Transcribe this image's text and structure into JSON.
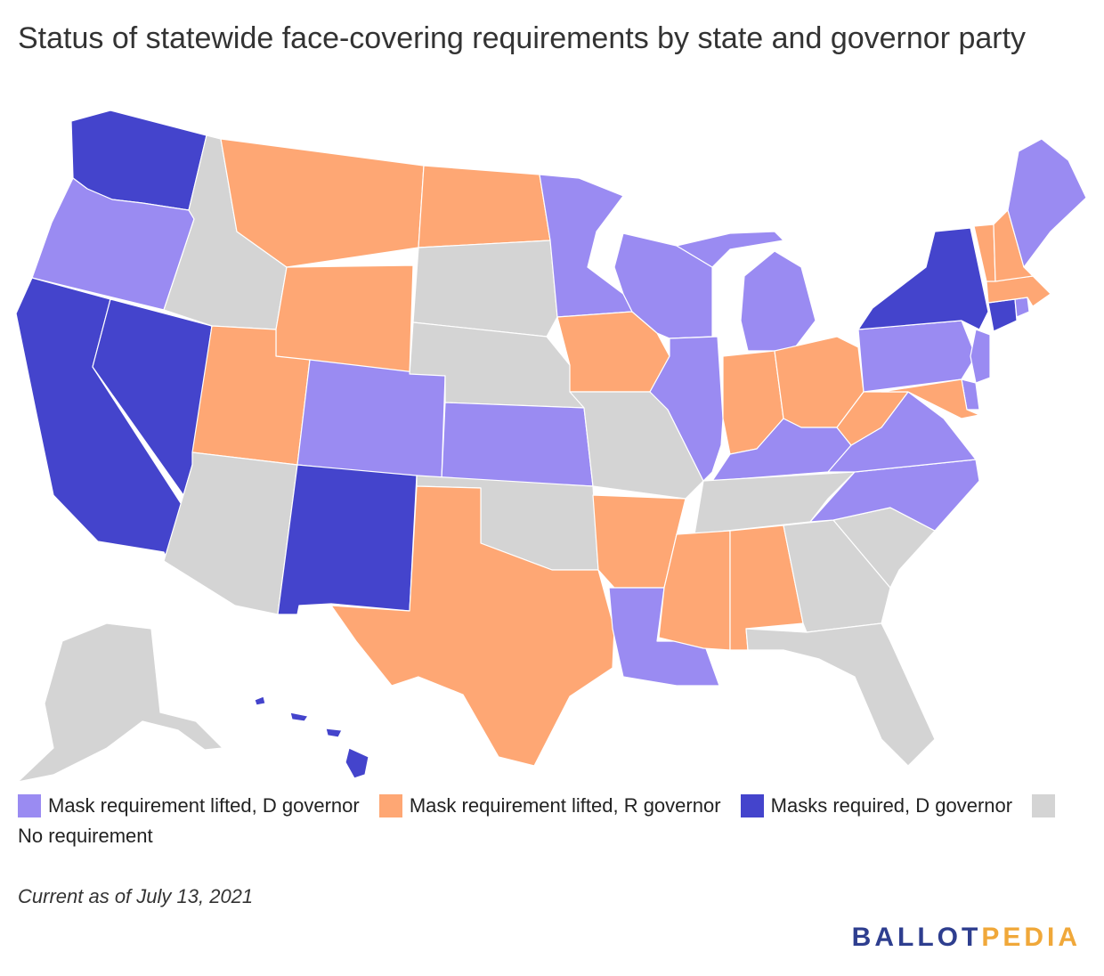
{
  "title": "Status of statewide face-covering requirements by state and governor party",
  "legend": [
    {
      "key": "lifted_d",
      "label": "Mask requirement lifted, D governor",
      "color": "#9a8bf2"
    },
    {
      "key": "lifted_r",
      "label": "Mask requirement lifted, R governor",
      "color": "#fea774"
    },
    {
      "key": "required_d",
      "label": "Masks required, D governor",
      "color": "#4444cc"
    },
    {
      "key": "none",
      "label": "No requirement",
      "color": "#d4d4d4"
    }
  ],
  "states": [
    {
      "name": "Washington",
      "status": "required_d"
    },
    {
      "name": "Oregon",
      "status": "lifted_d"
    },
    {
      "name": "California",
      "status": "required_d"
    },
    {
      "name": "Nevada",
      "status": "required_d"
    },
    {
      "name": "Idaho",
      "status": "none"
    },
    {
      "name": "Montana",
      "status": "lifted_r"
    },
    {
      "name": "Wyoming",
      "status": "lifted_r"
    },
    {
      "name": "Utah",
      "status": "lifted_r"
    },
    {
      "name": "Arizona",
      "status": "none"
    },
    {
      "name": "Colorado",
      "status": "lifted_d"
    },
    {
      "name": "New Mexico",
      "status": "required_d"
    },
    {
      "name": "North Dakota",
      "status": "lifted_r"
    },
    {
      "name": "South Dakota",
      "status": "none"
    },
    {
      "name": "Nebraska",
      "status": "none"
    },
    {
      "name": "Kansas",
      "status": "lifted_d"
    },
    {
      "name": "Oklahoma",
      "status": "none"
    },
    {
      "name": "Texas",
      "status": "lifted_r"
    },
    {
      "name": "Minnesota",
      "status": "lifted_d"
    },
    {
      "name": "Iowa",
      "status": "lifted_r"
    },
    {
      "name": "Missouri",
      "status": "none"
    },
    {
      "name": "Arkansas",
      "status": "lifted_r"
    },
    {
      "name": "Louisiana",
      "status": "lifted_d"
    },
    {
      "name": "Wisconsin",
      "status": "lifted_d"
    },
    {
      "name": "Illinois",
      "status": "lifted_d"
    },
    {
      "name": "Michigan",
      "status": "lifted_d"
    },
    {
      "name": "Indiana",
      "status": "lifted_r"
    },
    {
      "name": "Ohio",
      "status": "lifted_r"
    },
    {
      "name": "Kentucky",
      "status": "lifted_d"
    },
    {
      "name": "Tennessee",
      "status": "none"
    },
    {
      "name": "Mississippi",
      "status": "lifted_r"
    },
    {
      "name": "Alabama",
      "status": "lifted_r"
    },
    {
      "name": "Georgia",
      "status": "none"
    },
    {
      "name": "Florida",
      "status": "none"
    },
    {
      "name": "South Carolina",
      "status": "none"
    },
    {
      "name": "North Carolina",
      "status": "lifted_d"
    },
    {
      "name": "Virginia",
      "status": "lifted_d"
    },
    {
      "name": "West Virginia",
      "status": "lifted_r"
    },
    {
      "name": "Pennsylvania",
      "status": "lifted_d"
    },
    {
      "name": "New York",
      "status": "required_d"
    },
    {
      "name": "New Jersey",
      "status": "lifted_d"
    },
    {
      "name": "Delaware",
      "status": "lifted_d"
    },
    {
      "name": "Maryland",
      "status": "lifted_r"
    },
    {
      "name": "Connecticut",
      "status": "required_d"
    },
    {
      "name": "Rhode Island",
      "status": "lifted_d"
    },
    {
      "name": "Massachusetts",
      "status": "lifted_r"
    },
    {
      "name": "Vermont",
      "status": "lifted_r"
    },
    {
      "name": "New Hampshire",
      "status": "lifted_r"
    },
    {
      "name": "Maine",
      "status": "lifted_d"
    },
    {
      "name": "Alaska",
      "status": "none"
    },
    {
      "name": "Hawaii",
      "status": "required_d"
    }
  ],
  "note": "Current as of July 13, 2021",
  "logo": {
    "part1": "BALLOT",
    "part2": "PEDIA"
  }
}
